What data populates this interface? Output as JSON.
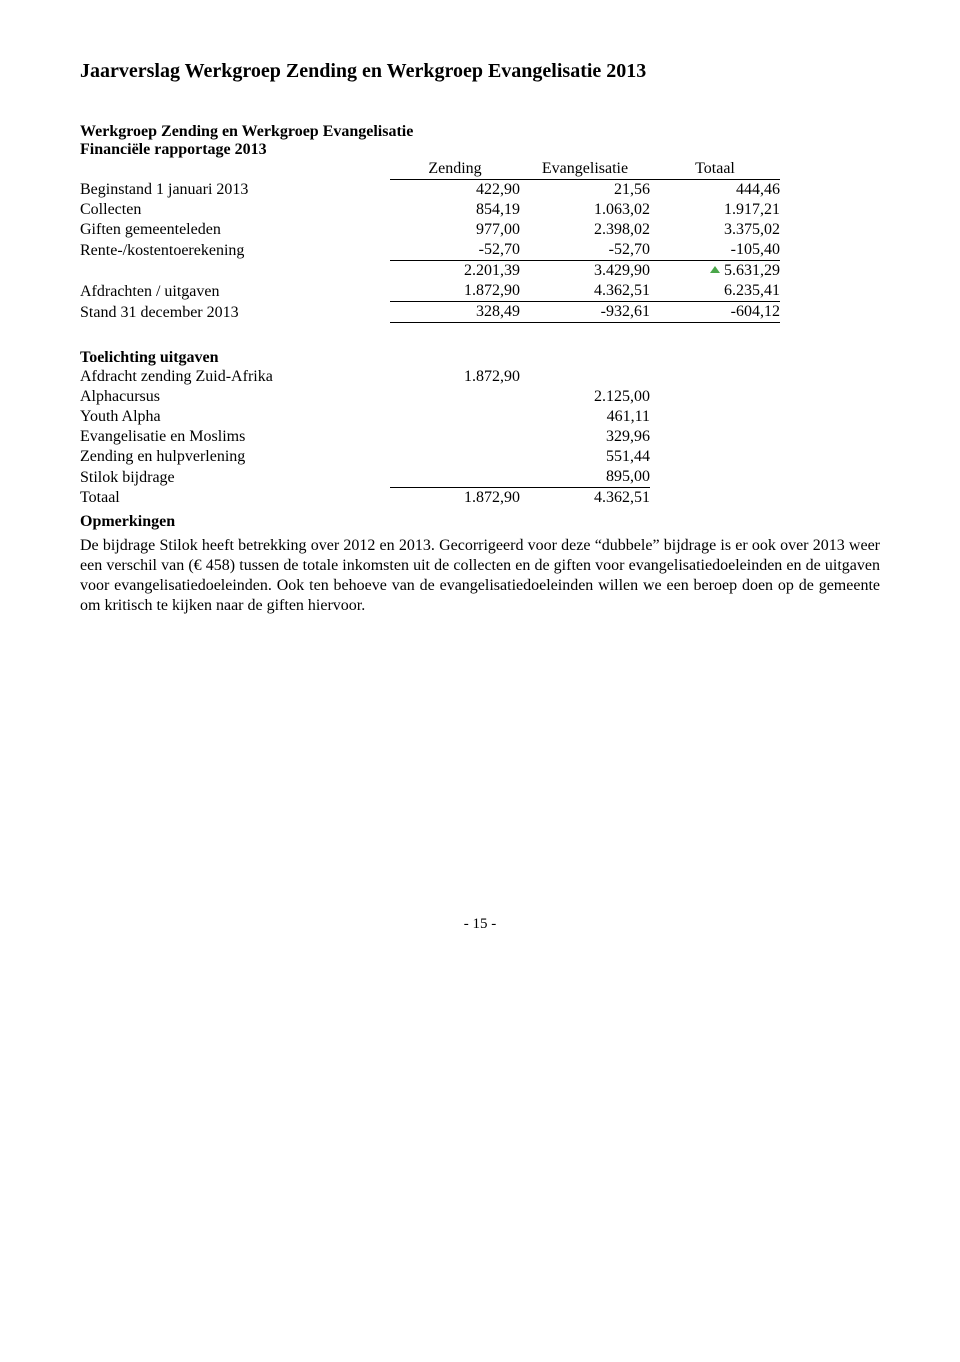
{
  "title": "Jaarverslag Werkgroep Zending en Werkgroep Evangelisatie 2013",
  "header1": "Werkgroep Zending en Werkgroep Evangelisatie",
  "header2": "Financiële rapportage 2013",
  "cols": {
    "c1": "Zending",
    "c2": "Evangelisatie",
    "c3": "Totaal"
  },
  "rows": {
    "begin": {
      "label": "Beginstand 1 januari 2013",
      "c1": "422,90",
      "c2": "21,56",
      "c3": "444,46"
    },
    "coll": {
      "label": "Collecten",
      "c1": "854,19",
      "c2": "1.063,02",
      "c3": "1.917,21"
    },
    "gift": {
      "label": "Giften gemeenteleden",
      "c1": "977,00",
      "c2": "2.398,02",
      "c3": "3.375,02"
    },
    "rente": {
      "label": "Rente-/kostentoerekening",
      "c1": "-52,70",
      "c2": "-52,70",
      "c3": "-105,40"
    },
    "sub": {
      "label": "",
      "c1": "2.201,39",
      "c2": "3.429,90",
      "c3": "5.631,29"
    },
    "afd": {
      "label": "Afdrachten / uitgaven",
      "c1": "1.872,90",
      "c2": "4.362,51",
      "c3": "6.235,41"
    },
    "stand": {
      "label": "Stand 31 december 2013",
      "c1": "328,49",
      "c2": "-932,61",
      "c3": "-604,12"
    }
  },
  "toelichting_head": "Toelichting uitgaven",
  "toelichting": {
    "zending": {
      "label": "Afdracht zending Zuid-Afrika",
      "c1": "1.872,90",
      "c2": ""
    },
    "alpha": {
      "label": "Alphacursus",
      "c1": "",
      "c2": "2.125,00"
    },
    "youth": {
      "label": "Youth Alpha",
      "c1": "",
      "c2": "461,11"
    },
    "moslims": {
      "label": "Evangelisatie en Moslims",
      "c1": "",
      "c2": "329,96"
    },
    "hulp": {
      "label": "Zending en hulpverlening",
      "c1": "",
      "c2": "551,44"
    },
    "stilok": {
      "label": "Stilok bijdrage",
      "c1": "",
      "c2": "895,00"
    },
    "totaal": {
      "label": "Totaal",
      "c1": "1.872,90",
      "c2": "4.362,51"
    }
  },
  "opm_head": "Opmerkingen",
  "opm_body": "De bijdrage Stilok heeft betrekking over 2012 en 2013. Gecorrigeerd voor deze “dubbele” bijdrage is er ook over 2013 weer een verschil van (€ 458) tussen de totale inkomsten uit de collecten en de giften voor evangelisatiedoeleinden en de uitgaven voor evangelisatiedoeleinden. Ook ten behoeve van de evangelisatiedoeleinden willen we een beroep doen op de gemeente om kritisch te kijken naar de giften hiervoor.",
  "page": "- 15 -"
}
